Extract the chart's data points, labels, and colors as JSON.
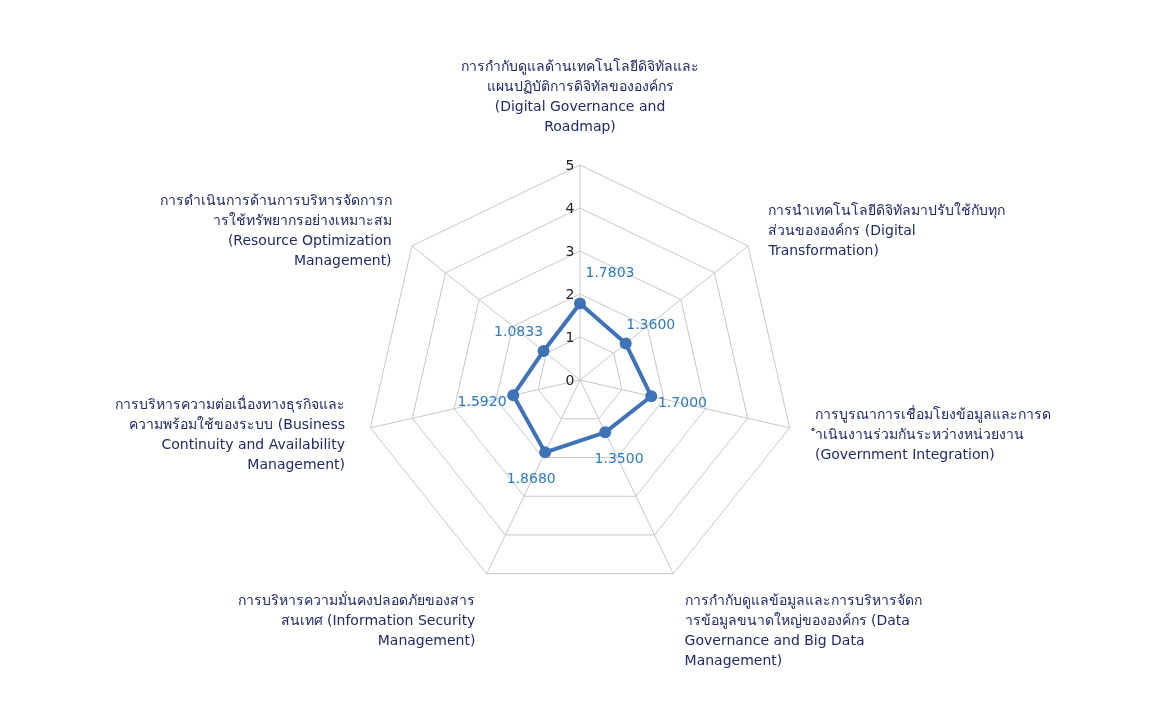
{
  "chart_data": {
    "type": "radar",
    "categories": [
      "การกำกับดูแลด้านเทคโนโลยีดิจิทัลและแผนปฏิบัติการดิจิทัลขององค์กร (Digital Governance and Roadmap)",
      "การนำเทคโนโลยีดิจิทัลมาปรับใช้กับทุกส่วนขององค์กร (Digital Transformation)",
      "การบูรณาการเชื่อมโยงข้อมูลและการดำเนินงานร่วมกันระหว่างหน่วยงาน (Government Integration)",
      "การกำกับดูแลข้อมูลและการบริหารจัดการข้อมูลขนาดใหญ่ขององค์กร (Data Governance and Big Data Management)",
      "การบริหารความมั่นคงปลอดภัยของสารสนเทศ (Information Security Management)",
      "การบริหารความต่อเนื่องทางธุรกิจและความพร้อมใช้ของระบบ (Business Continuity and Availability Management)",
      "การดำเนินการด้านการบริหารจัดการการใช้ทรัพยากรอย่างเหมาะสม (Resource Optimization Management)"
    ],
    "series": [
      {
        "color": "#3f72b6",
        "values": [
          1.7803,
          1.36,
          1.7,
          1.35,
          1.868,
          1.592,
          1.0833
        ],
        "value_labels": [
          "1.7803",
          "1.3600",
          "1.7000",
          "1.3500",
          "1.8680",
          "1.5920",
          "1.0833"
        ]
      }
    ],
    "ylim": [
      0,
      5
    ],
    "yticks": [
      0,
      1,
      2,
      3,
      4,
      5
    ],
    "grid": true,
    "marker": "circle",
    "legend": false
  }
}
